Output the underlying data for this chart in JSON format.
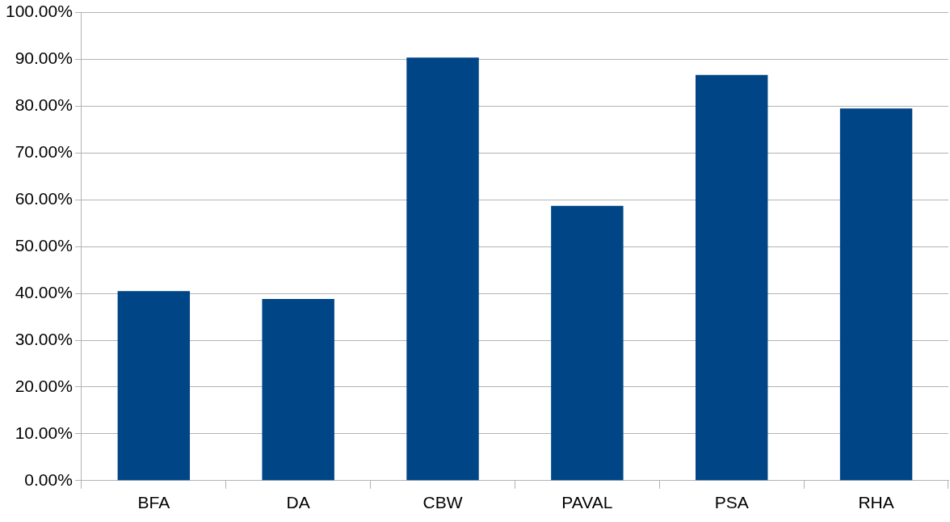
{
  "chart_data": {
    "type": "bar",
    "categories": [
      "BFA",
      "DA",
      "CBW",
      "PAVAL",
      "PSA",
      "RHA"
    ],
    "values": [
      40.5,
      38.8,
      90.4,
      58.7,
      86.7,
      79.5
    ],
    "color": "#004586",
    "ylim": [
      0,
      100
    ],
    "yticks": [
      {
        "value": 0,
        "label": "0.00%"
      },
      {
        "value": 10,
        "label": "10.00%"
      },
      {
        "value": 20,
        "label": "20.00%"
      },
      {
        "value": 30,
        "label": "30.00%"
      },
      {
        "value": 40,
        "label": "40.00%"
      },
      {
        "value": 50,
        "label": "50.00%"
      },
      {
        "value": 60,
        "label": "60.00%"
      },
      {
        "value": 70,
        "label": "70.00%"
      },
      {
        "value": 80,
        "label": "80.00%"
      },
      {
        "value": 90,
        "label": "90.00%"
      },
      {
        "value": 100,
        "label": "100.00%"
      }
    ],
    "grid": "y",
    "legend": false
  }
}
